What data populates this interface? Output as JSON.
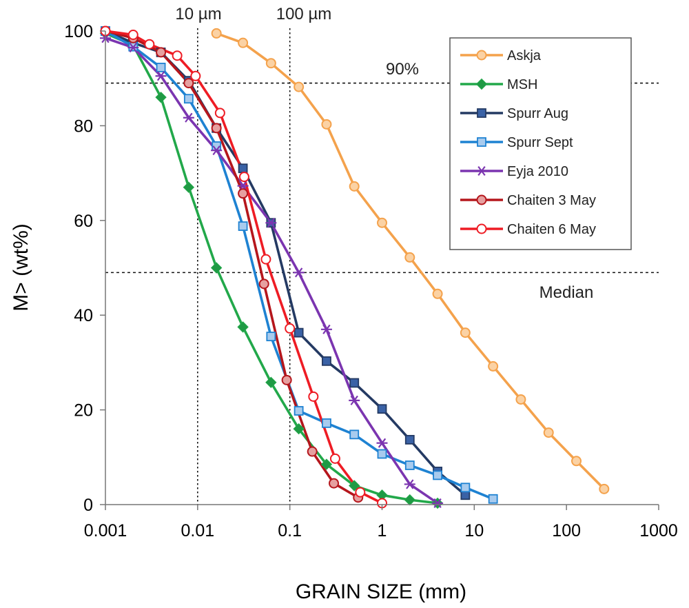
{
  "chart_data": {
    "type": "line",
    "xlabel": "GRAIN SIZE (mm)",
    "ylabel": "M> (wt%)",
    "x_scale": "log",
    "xlim": [
      0.001,
      1000
    ],
    "ylim": [
      0,
      100
    ],
    "x_ticks": [
      "0.001",
      "0.01",
      "0.1",
      "1",
      "10",
      "100",
      "1000"
    ],
    "y_ticks": [
      "0",
      "20",
      "40",
      "60",
      "80",
      "100"
    ],
    "grid": false,
    "legend_position": "top-right",
    "annotations": {
      "size_10": "10 µm",
      "size_100": "100 µm",
      "pct_90": "90%",
      "median": "Median"
    },
    "reference_lines": {
      "vertical": [
        0.01,
        0.1
      ],
      "horizontal": [
        89,
        49
      ]
    },
    "series": [
      {
        "name": "Askja",
        "color": "#f4a24c",
        "marker": "circle",
        "marker_fill": "#fbd2a4",
        "x": [
          0.016,
          0.031,
          0.0625,
          0.125,
          0.25,
          0.5,
          1,
          2,
          4,
          8,
          16,
          32,
          64,
          128,
          256
        ],
        "y": [
          99.5,
          97.5,
          93.2,
          88.2,
          80.3,
          67.2,
          59.5,
          52.2,
          44.5,
          36.3,
          29.2,
          22.2,
          15.2,
          9.2,
          3.3
        ]
      },
      {
        "name": "MSH",
        "color": "#22a84a",
        "marker": "diamond",
        "marker_fill": "#1f9a44",
        "x": [
          0.001,
          0.002,
          0.004,
          0.008,
          0.016,
          0.031,
          0.0625,
          0.125,
          0.25,
          0.5,
          1,
          2,
          4
        ],
        "y": [
          99.5,
          97.0,
          86.0,
          67.0,
          50.0,
          37.5,
          25.8,
          16.0,
          8.5,
          4.0,
          2.0,
          1.0,
          0.3
        ]
      },
      {
        "name": "Spurr Aug",
        "color": "#243a63",
        "marker": "square",
        "marker_fill": "#3a62a6",
        "x": [
          0.001,
          0.002,
          0.004,
          0.008,
          0.016,
          0.031,
          0.0625,
          0.125,
          0.25,
          0.5,
          1,
          2,
          4,
          8
        ],
        "y": [
          100,
          97.5,
          95.5,
          89.5,
          79.5,
          71.0,
          59.5,
          36.3,
          30.3,
          25.7,
          20.2,
          13.7,
          7.0,
          2.0
        ]
      },
      {
        "name": "Spurr Sept",
        "color": "#1e82d2",
        "marker": "square",
        "marker_fill": "#a8cbee",
        "x": [
          0.001,
          0.002,
          0.004,
          0.008,
          0.016,
          0.031,
          0.0625,
          0.125,
          0.25,
          0.5,
          1,
          2,
          4,
          8,
          16
        ],
        "y": [
          100,
          96.7,
          92.3,
          85.7,
          75.7,
          58.8,
          35.5,
          19.8,
          17.2,
          14.8,
          10.7,
          8.3,
          6.2,
          3.6,
          1.2
        ]
      },
      {
        "name": "Eyja 2010",
        "color": "#7b35b0",
        "marker": "star",
        "marker_fill": "#7b35b0",
        "x": [
          0.001,
          0.002,
          0.004,
          0.008,
          0.016,
          0.031,
          0.0625,
          0.125,
          0.25,
          0.5,
          1,
          2,
          4
        ],
        "y": [
          98.5,
          96.5,
          90.5,
          81.7,
          74.8,
          67.3,
          59.5,
          49.0,
          37.0,
          22.0,
          13.0,
          4.3,
          0.3
        ]
      },
      {
        "name": "Chaiten 3 May",
        "color": "#b5161c",
        "marker": "circle",
        "marker_fill": "#e6a0a0",
        "x": [
          0.001,
          0.002,
          0.004,
          0.008,
          0.016,
          0.031,
          0.0525,
          0.0925,
          0.175,
          0.3,
          0.55
        ],
        "y": [
          100,
          98.5,
          95.5,
          89.0,
          79.5,
          65.7,
          46.6,
          26.3,
          11.2,
          4.5,
          1.5
        ]
      },
      {
        "name": "Chaiten 6 May",
        "color": "#ee1c24",
        "marker": "circle",
        "marker_fill": "#ffffff",
        "x": [
          0.001,
          0.002,
          0.003,
          0.006,
          0.0095,
          0.0175,
          0.032,
          0.055,
          0.1,
          0.18,
          0.31,
          0.58,
          1.0
        ],
        "y": [
          100,
          99.2,
          97.2,
          94.8,
          90.5,
          82.7,
          69.2,
          51.8,
          37.2,
          22.8,
          9.7,
          2.6,
          0.3
        ]
      }
    ]
  }
}
